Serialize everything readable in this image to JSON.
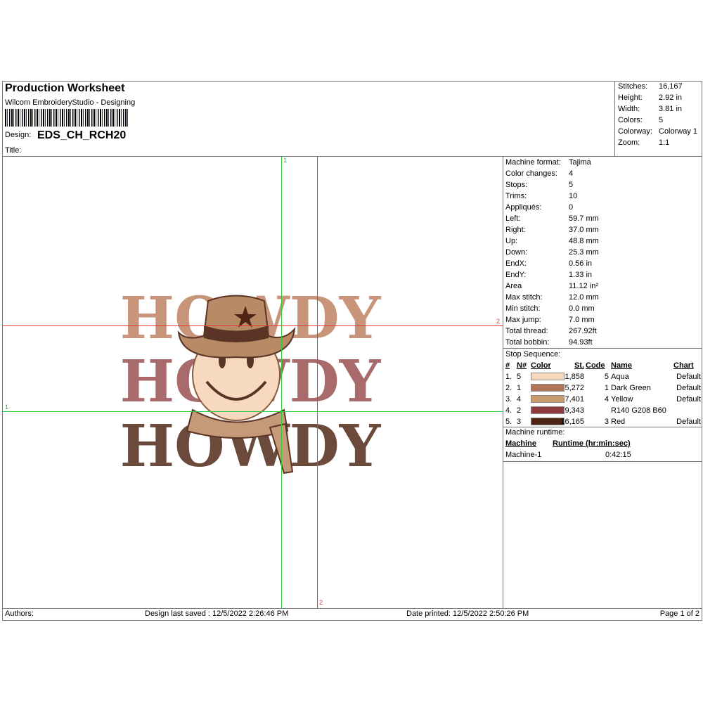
{
  "header": {
    "title": "Production Worksheet",
    "software": "Wilcom EmbroideryStudio - Designing",
    "design_label": "Design:",
    "design_name": "EDS_CH_RCH20",
    "title_label": "Title:"
  },
  "summary": [
    {
      "k": "Stitches:",
      "v": "16,167"
    },
    {
      "k": "Height:",
      "v": "2.92 in"
    },
    {
      "k": "Width:",
      "v": "3.81 in"
    },
    {
      "k": "Colors:",
      "v": "5"
    },
    {
      "k": "Colorway:",
      "v": "Colorway 1"
    },
    {
      "k": "Zoom:",
      "v": "1:1"
    }
  ],
  "machine_info": [
    {
      "k": "Machine format:",
      "v": "Tajima"
    },
    {
      "k": "Color changes:",
      "v": "4"
    },
    {
      "k": "Stops:",
      "v": "5"
    },
    {
      "k": "Trims:",
      "v": "10"
    },
    {
      "k": "Appliqués:",
      "v": "0"
    },
    {
      "k": "Left:",
      "v": "59.7 mm"
    },
    {
      "k": "Right:",
      "v": "37.0 mm"
    },
    {
      "k": "Up:",
      "v": "48.8 mm"
    },
    {
      "k": "Down:",
      "v": "25.3 mm"
    },
    {
      "k": "EndX:",
      "v": "0.56 in"
    },
    {
      "k": "EndY:",
      "v": "1.33 in"
    },
    {
      "k": "Area",
      "v": " 11.12 in²"
    },
    {
      "k": "Max stitch:",
      "v": "12.0 mm"
    },
    {
      "k": "Min stitch:",
      "v": "0.0 mm"
    },
    {
      "k": "Max jump:",
      "v": "7.0 mm"
    },
    {
      "k": "Total thread:",
      "v": "267.92ft"
    },
    {
      "k": "Total bobbin:",
      "v": "94.93ft"
    }
  ],
  "stop_sequence": {
    "label": "Stop Sequence:",
    "headers": [
      "#",
      "N#",
      "Color",
      "St.",
      "Code",
      "Name",
      "Chart"
    ],
    "rows": [
      {
        "n": "1.",
        "nn": "5",
        "color": "#f9d9bd",
        "st": "1,858",
        "code": "5",
        "name": "Aqua",
        "chart": "Default"
      },
      {
        "n": "2.",
        "nn": "1",
        "color": "#b07558",
        "st": "5,272",
        "code": "1",
        "name": "Dark Green",
        "chart": "Default"
      },
      {
        "n": "3.",
        "nn": "4",
        "color": "#c99a6c",
        "st": "7,401",
        "code": "4",
        "name": "Yellow",
        "chart": "Default"
      },
      {
        "n": "4.",
        "nn": "2",
        "color": "#8c3c3c",
        "st": "9,343",
        "code": "",
        "name": "R140 G208 B60",
        "chart": ""
      },
      {
        "n": "5.",
        "nn": "3",
        "color": "#4e2415",
        "st": "16,165",
        "code": "3",
        "name": "Red",
        "chart": "Default"
      }
    ]
  },
  "runtime": {
    "label": "Machine runtime:",
    "headers": [
      "Machine",
      "Runtime (hr:min:sec)"
    ],
    "rows": [
      {
        "machine": "Machine-1",
        "runtime": "0:42:15"
      }
    ]
  },
  "guides": {
    "v1": "1",
    "v2": "2",
    "h1": "1",
    "h2": "2"
  },
  "design_text": "HOWDY",
  "footer": {
    "authors": "Authors:",
    "saved": "Design last saved : 12/5/2022 2:26:46 PM",
    "printed": "Date printed: 12/5/2022 2:50:26 PM",
    "page": "Page 1 of 2"
  }
}
